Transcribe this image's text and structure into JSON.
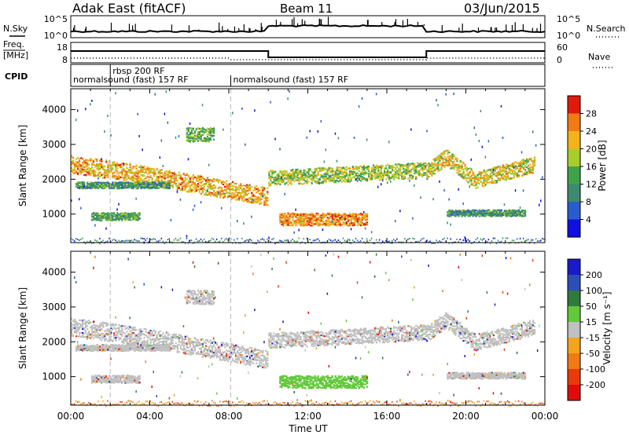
{
  "header": {
    "radar": "Adak East (fitACF)",
    "beam": "Beam 11",
    "date": "03/Jun/2015"
  },
  "strip_labels": {
    "nsky": "N.Sky",
    "nsearch": "N.Search",
    "freq_line1": "Freq.",
    "freq_line2": "[MHz]",
    "nave": "Nave",
    "cpid": "CPID",
    "noise_ticks_left": [
      "10^5",
      "10^0"
    ],
    "noise_ticks_right": [
      "10^5",
      "10^0"
    ],
    "freq_ticks": [
      "18",
      "8"
    ],
    "nave_ticks": [
      "60",
      "0"
    ]
  },
  "cpid_labels": [
    {
      "text": "normalsound (fast) 157 RF",
      "hour": 0.0,
      "row": 1
    },
    {
      "text": "rbsp 200 RF",
      "hour": 2.0,
      "row": 0
    },
    {
      "text": "normalsound (fast) 157 RF",
      "hour": 8.1,
      "row": 1
    }
  ],
  "chart_data": [
    {
      "type": "heatmap",
      "name": "power-panel",
      "ylabel": "Slant Range [km]",
      "xlabel": "",
      "xlim": [
        0,
        24
      ],
      "ylim": [
        180,
        4600
      ],
      "yticks": [
        "1000",
        "2000",
        "3000",
        "4000"
      ],
      "colorbar_label": "Power [dB]",
      "colorbar_ticks": [
        "4",
        "8",
        "12",
        "16",
        "20",
        "24",
        "28"
      ],
      "colorbar_colors": [
        "#1010e0",
        "#2a5ccd",
        "#3d8a6e",
        "#3fa24a",
        "#a8cd2a",
        "#f4b31c",
        "#f07a14",
        "#e01a0c"
      ]
    },
    {
      "type": "heatmap",
      "name": "velocity-panel",
      "ylabel": "Slant Range [km]",
      "xlabel": "Time UT",
      "xlim": [
        0,
        24
      ],
      "ylim": [
        180,
        4600
      ],
      "yticks": [
        "1000",
        "2000",
        "3000",
        "4000"
      ],
      "xticks": [
        "00:00",
        "04:00",
        "08:00",
        "12:00",
        "16:00",
        "20:00",
        "00:00"
      ],
      "colorbar_label": "Velocity [m s⁻¹]",
      "colorbar_ticks": [
        "200",
        "100",
        "50",
        "15",
        "-15",
        "-50",
        "-100",
        "-200"
      ],
      "colorbar_colors": [
        "#1a1ac8",
        "#2b4fb4",
        "#2f7a3c",
        "#62c83b",
        "#c0c0c0",
        "#f4a41c",
        "#f07a14",
        "#e83a0c",
        "#e00c0c"
      ]
    }
  ]
}
